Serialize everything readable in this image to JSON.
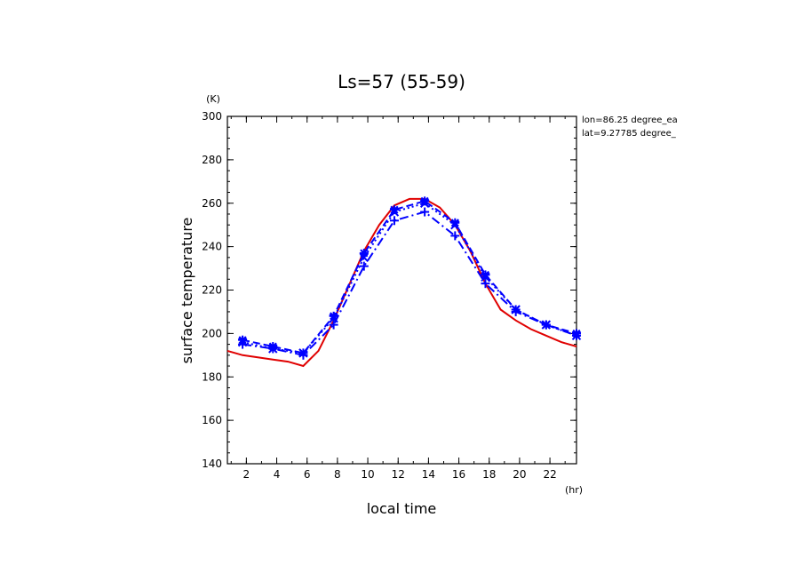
{
  "chart_data": {
    "type": "line",
    "title": "Ls=57 (55-59)",
    "xlabel": "local time",
    "ylabel": "surface temperature",
    "x_unit": "(hr)",
    "y_unit": "(K)",
    "xlim": [
      0.75,
      23.75
    ],
    "ylim": [
      140,
      300
    ],
    "x_ticks": [
      2,
      4,
      6,
      8,
      10,
      12,
      14,
      16,
      18,
      20,
      22
    ],
    "y_ticks": [
      140,
      160,
      180,
      200,
      220,
      240,
      260,
      280,
      300
    ],
    "annotations": [
      "lon=86.25 degree_ea",
      "lat=9.27785 degree_"
    ],
    "grid": false,
    "series": [
      {
        "color": "#e00000",
        "style": "solid",
        "marker": "none",
        "x": [
          0.75,
          1.75,
          2.75,
          3.75,
          4.75,
          5.75,
          6.75,
          7.75,
          8.75,
          9.75,
          10.75,
          11.75,
          12.75,
          13.75,
          14.75,
          15.75,
          16.75,
          17.75,
          18.75,
          19.75,
          20.75,
          21.75,
          22.75,
          23.75
        ],
        "values": [
          192,
          190,
          189,
          188,
          187,
          185,
          192,
          206,
          222,
          238,
          250,
          259,
          262,
          262,
          258,
          250,
          238,
          223,
          211,
          206,
          202,
          199,
          196,
          194
        ]
      },
      {
        "color": "#0000ff",
        "style": "dashed",
        "marker": "star",
        "x": [
          1.75,
          3.75,
          5.75,
          7.75,
          9.75,
          11.75,
          13.75,
          15.75,
          17.75,
          19.75,
          21.75,
          23.75
        ],
        "values": [
          197,
          194,
          191,
          208,
          237,
          257,
          261,
          251,
          227,
          211,
          204,
          200
        ]
      },
      {
        "color": "#0000ff",
        "style": "dotted",
        "marker": "cross",
        "x": [
          1.75,
          3.75,
          5.75,
          7.75,
          9.75,
          11.75,
          13.75,
          15.75,
          17.75,
          19.75,
          21.75,
          23.75
        ],
        "values": [
          196,
          193,
          191,
          207,
          235,
          256,
          260,
          250,
          226,
          211,
          204,
          199
        ]
      },
      {
        "color": "#0000ff",
        "style": "dashdot",
        "marker": "plus",
        "x": [
          1.75,
          3.75,
          5.75,
          7.75,
          9.75,
          11.75,
          13.75,
          15.75,
          17.75,
          19.75,
          21.75,
          23.75
        ],
        "values": [
          195,
          193,
          190,
          204,
          231,
          252,
          256,
          245,
          223,
          210,
          204,
          199
        ]
      }
    ]
  }
}
